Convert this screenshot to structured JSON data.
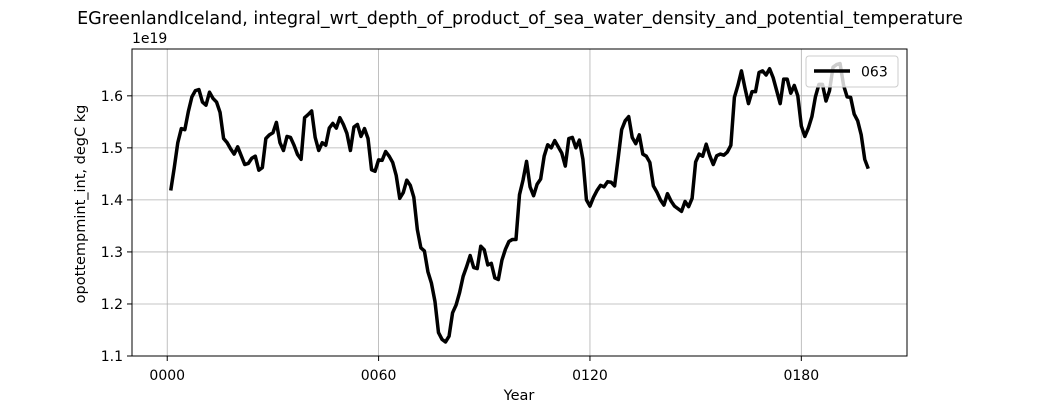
{
  "chart_data": {
    "type": "line",
    "title": "EGreenlandIceland, integral_wrt_depth_of_product_of_sea_water_density_and_potential_temperature",
    "xlabel": "Year",
    "ylabel": "opottempmint_int, degC kg",
    "y_offset_label": "1e19",
    "y_scale": 1e+19,
    "xlim": [
      -10,
      210
    ],
    "ylim": [
      1.1,
      1.69
    ],
    "x_ticks": [
      0,
      60,
      120,
      180
    ],
    "x_tick_labels": [
      "0000",
      "0060",
      "0120",
      "0180"
    ],
    "y_ticks": [
      1.1,
      1.2,
      1.3,
      1.4,
      1.5,
      1.6
    ],
    "y_tick_labels": [
      "1.1",
      "1.2",
      "1.3",
      "1.4",
      "1.5",
      "1.6"
    ],
    "grid": true,
    "legend_position": "top-right",
    "series": [
      {
        "name": "063",
        "color": "#000000",
        "points": [
          [
            1,
            1.418
          ],
          [
            2,
            1.462
          ],
          [
            3,
            1.51
          ],
          [
            4,
            1.537
          ],
          [
            5,
            1.535
          ],
          [
            6,
            1.57
          ],
          [
            7,
            1.598
          ],
          [
            8,
            1.61
          ],
          [
            9,
            1.612
          ],
          [
            10,
            1.588
          ],
          [
            11,
            1.582
          ],
          [
            12,
            1.607
          ],
          [
            13,
            1.595
          ],
          [
            14,
            1.588
          ],
          [
            15,
            1.568
          ],
          [
            16,
            1.518
          ],
          [
            17,
            1.51
          ],
          [
            18,
            1.498
          ],
          [
            19,
            1.488
          ],
          [
            20,
            1.502
          ],
          [
            21,
            1.485
          ],
          [
            22,
            1.468
          ],
          [
            23,
            1.47
          ],
          [
            24,
            1.48
          ],
          [
            25,
            1.484
          ],
          [
            26,
            1.457
          ],
          [
            27,
            1.462
          ],
          [
            28,
            1.518
          ],
          [
            29,
            1.525
          ],
          [
            30,
            1.529
          ],
          [
            31,
            1.549
          ],
          [
            32,
            1.51
          ],
          [
            33,
            1.495
          ],
          [
            34,
            1.522
          ],
          [
            35,
            1.52
          ],
          [
            36,
            1.505
          ],
          [
            37,
            1.487
          ],
          [
            38,
            1.478
          ],
          [
            39,
            1.558
          ],
          [
            40,
            1.564
          ],
          [
            41,
            1.571
          ],
          [
            42,
            1.52
          ],
          [
            43,
            1.495
          ],
          [
            44,
            1.51
          ],
          [
            45,
            1.505
          ],
          [
            46,
            1.538
          ],
          [
            47,
            1.547
          ],
          [
            48,
            1.538
          ],
          [
            49,
            1.558
          ],
          [
            50,
            1.545
          ],
          [
            51,
            1.528
          ],
          [
            52,
            1.495
          ],
          [
            53,
            1.54
          ],
          [
            54,
            1.545
          ],
          [
            55,
            1.522
          ],
          [
            56,
            1.537
          ],
          [
            57,
            1.518
          ],
          [
            58,
            1.458
          ],
          [
            59,
            1.455
          ],
          [
            60,
            1.477
          ],
          [
            61,
            1.476
          ],
          [
            62,
            1.493
          ],
          [
            63,
            1.484
          ],
          [
            64,
            1.472
          ],
          [
            65,
            1.447
          ],
          [
            66,
            1.403
          ],
          [
            67,
            1.414
          ],
          [
            68,
            1.438
          ],
          [
            69,
            1.428
          ],
          [
            70,
            1.405
          ],
          [
            71,
            1.343
          ],
          [
            72,
            1.308
          ],
          [
            73,
            1.302
          ],
          [
            74,
            1.262
          ],
          [
            75,
            1.24
          ],
          [
            76,
            1.205
          ],
          [
            77,
            1.145
          ],
          [
            78,
            1.132
          ],
          [
            79,
            1.127
          ],
          [
            80,
            1.138
          ],
          [
            81,
            1.183
          ],
          [
            82,
            1.198
          ],
          [
            83,
            1.222
          ],
          [
            84,
            1.253
          ],
          [
            85,
            1.272
          ],
          [
            86,
            1.293
          ],
          [
            87,
            1.27
          ],
          [
            88,
            1.268
          ],
          [
            89,
            1.311
          ],
          [
            90,
            1.304
          ],
          [
            91,
            1.275
          ],
          [
            92,
            1.278
          ],
          [
            93,
            1.25
          ],
          [
            94,
            1.247
          ],
          [
            95,
            1.284
          ],
          [
            96,
            1.305
          ],
          [
            97,
            1.32
          ],
          [
            98,
            1.324
          ],
          [
            99,
            1.324
          ],
          [
            100,
            1.41
          ],
          [
            101,
            1.438
          ],
          [
            102,
            1.474
          ],
          [
            103,
            1.425
          ],
          [
            104,
            1.408
          ],
          [
            105,
            1.43
          ],
          [
            106,
            1.44
          ],
          [
            107,
            1.484
          ],
          [
            108,
            1.506
          ],
          [
            109,
            1.5
          ],
          [
            110,
            1.514
          ],
          [
            111,
            1.502
          ],
          [
            112,
            1.49
          ],
          [
            113,
            1.465
          ],
          [
            114,
            1.518
          ],
          [
            115,
            1.52
          ],
          [
            116,
            1.5
          ],
          [
            117,
            1.515
          ],
          [
            118,
            1.478
          ],
          [
            119,
            1.4
          ],
          [
            120,
            1.388
          ],
          [
            121,
            1.405
          ],
          [
            122,
            1.418
          ],
          [
            123,
            1.428
          ],
          [
            124,
            1.425
          ],
          [
            125,
            1.435
          ],
          [
            126,
            1.434
          ],
          [
            127,
            1.427
          ],
          [
            128,
            1.48
          ],
          [
            129,
            1.535
          ],
          [
            130,
            1.552
          ],
          [
            131,
            1.56
          ],
          [
            132,
            1.52
          ],
          [
            133,
            1.508
          ],
          [
            134,
            1.525
          ],
          [
            135,
            1.488
          ],
          [
            136,
            1.484
          ],
          [
            137,
            1.472
          ],
          [
            138,
            1.427
          ],
          [
            139,
            1.415
          ],
          [
            140,
            1.4
          ],
          [
            141,
            1.39
          ],
          [
            142,
            1.412
          ],
          [
            143,
            1.398
          ],
          [
            144,
            1.388
          ],
          [
            145,
            1.383
          ],
          [
            146,
            1.378
          ],
          [
            147,
            1.397
          ],
          [
            148,
            1.387
          ],
          [
            149,
            1.403
          ],
          [
            150,
            1.473
          ],
          [
            151,
            1.488
          ],
          [
            152,
            1.484
          ],
          [
            153,
            1.507
          ],
          [
            154,
            1.485
          ],
          [
            155,
            1.468
          ],
          [
            156,
            1.485
          ],
          [
            157,
            1.488
          ],
          [
            158,
            1.486
          ],
          [
            159,
            1.492
          ],
          [
            160,
            1.505
          ],
          [
            161,
            1.597
          ],
          [
            162,
            1.62
          ],
          [
            163,
            1.648
          ],
          [
            164,
            1.615
          ],
          [
            165,
            1.585
          ],
          [
            166,
            1.608
          ],
          [
            167,
            1.608
          ],
          [
            168,
            1.645
          ],
          [
            169,
            1.648
          ],
          [
            170,
            1.64
          ],
          [
            171,
            1.652
          ],
          [
            172,
            1.635
          ],
          [
            173,
            1.61
          ],
          [
            174,
            1.585
          ],
          [
            175,
            1.632
          ],
          [
            176,
            1.632
          ],
          [
            177,
            1.605
          ],
          [
            178,
            1.62
          ],
          [
            179,
            1.6
          ],
          [
            180,
            1.542
          ],
          [
            181,
            1.522
          ],
          [
            182,
            1.538
          ],
          [
            183,
            1.56
          ],
          [
            184,
            1.598
          ],
          [
            185,
            1.622
          ],
          [
            186,
            1.622
          ],
          [
            187,
            1.59
          ],
          [
            188,
            1.61
          ],
          [
            189,
            1.655
          ],
          [
            190,
            1.66
          ],
          [
            191,
            1.662
          ],
          [
            192,
            1.62
          ],
          [
            193,
            1.598
          ],
          [
            194,
            1.597
          ],
          [
            195,
            1.565
          ],
          [
            196,
            1.552
          ],
          [
            197,
            1.525
          ],
          [
            198,
            1.478
          ],
          [
            199,
            1.46
          ]
        ]
      }
    ]
  }
}
